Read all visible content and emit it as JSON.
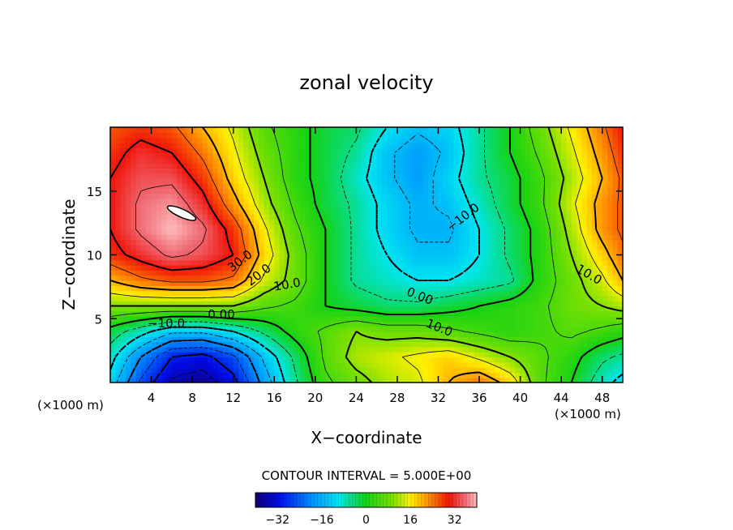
{
  "chart_data": {
    "type": "heatmap",
    "title": "zonal velocity",
    "xlabel": "X−coordinate",
    "ylabel": "Z−coordinate",
    "x_unit_left": "(×1000 m)",
    "x_unit_right": "(×1000 m)",
    "x_ticks": [
      "4",
      "8",
      "12",
      "16",
      "20",
      "24",
      "28",
      "32",
      "36",
      "40",
      "44",
      "48"
    ],
    "y_ticks": [
      "5",
      "10",
      "15"
    ],
    "xlim": [
      0,
      50
    ],
    "ylim": [
      0,
      20
    ],
    "contour_interval_label": "CONTOUR INTERVAL = 5.000E+00",
    "contour_labels": [
      "30.0",
      "20.0",
      "10.0",
      "0.00",
      "−10.0",
      "0.00",
      "10.0",
      "−10.0",
      "10.0"
    ],
    "colorbar": {
      "range": [
        -40,
        40
      ],
      "ticks": [
        "−32",
        "−16",
        "0",
        "16",
        "32"
      ]
    },
    "x": [
      0,
      3,
      6,
      9,
      12,
      15,
      18,
      21,
      24,
      27,
      30,
      33,
      36,
      39,
      42,
      45,
      48,
      50
    ],
    "z": [
      0,
      2,
      4,
      6,
      8,
      10,
      12,
      14,
      16,
      18,
      20
    ],
    "values": [
      [
        -12,
        -26,
        -36,
        -38,
        -32,
        -18,
        -6,
        4,
        8,
        12,
        14,
        20,
        24,
        18,
        6,
        0,
        -8,
        -12
      ],
      [
        -8,
        -20,
        -30,
        -32,
        -26,
        -14,
        -4,
        6,
        12,
        14,
        16,
        18,
        14,
        10,
        6,
        2,
        -4,
        -6
      ],
      [
        -2,
        -8,
        -14,
        -14,
        -10,
        -4,
        2,
        6,
        10,
        8,
        8,
        6,
        4,
        2,
        4,
        6,
        4,
        2
      ],
      [
        10,
        10,
        10,
        10,
        10,
        6,
        4,
        0,
        -2,
        -4,
        -4,
        -2,
        0,
        2,
        4,
        8,
        10,
        12
      ],
      [
        20,
        24,
        26,
        26,
        24,
        14,
        8,
        0,
        -6,
        -8,
        -10,
        -10,
        -8,
        -6,
        2,
        8,
        14,
        20
      ],
      [
        28,
        32,
        36,
        34,
        30,
        18,
        8,
        0,
        -6,
        -10,
        -14,
        -14,
        -10,
        -4,
        2,
        10,
        18,
        24
      ],
      [
        30,
        36,
        40,
        36,
        28,
        16,
        6,
        0,
        -6,
        -12,
        -16,
        -16,
        -10,
        -4,
        2,
        12,
        22,
        26
      ],
      [
        30,
        36,
        38,
        32,
        22,
        12,
        4,
        -2,
        -6,
        -12,
        -16,
        -14,
        -8,
        -2,
        4,
        14,
        22,
        26
      ],
      [
        30,
        34,
        34,
        28,
        18,
        10,
        2,
        -2,
        -8,
        -14,
        -18,
        -12,
        -6,
        -2,
        4,
        12,
        20,
        26
      ],
      [
        28,
        32,
        30,
        24,
        16,
        8,
        2,
        -2,
        -6,
        -14,
        -18,
        -14,
        -6,
        0,
        6,
        14,
        22,
        28
      ],
      [
        26,
        28,
        26,
        20,
        14,
        6,
        2,
        -2,
        -4,
        -10,
        -14,
        -12,
        -6,
        0,
        8,
        16,
        24,
        30
      ]
    ]
  }
}
